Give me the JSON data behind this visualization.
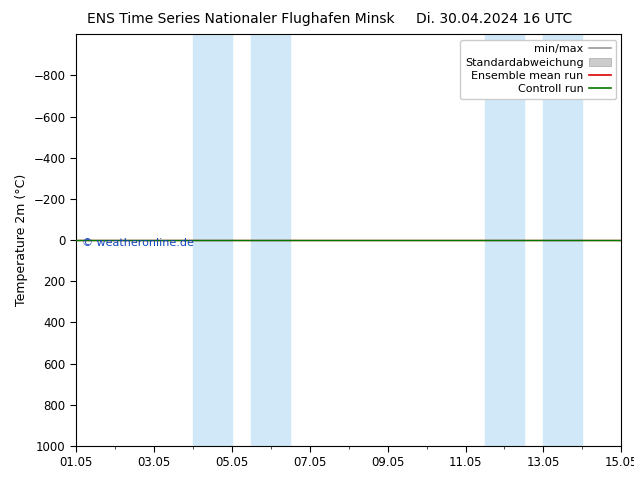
{
  "title": "ENS Time Series Nationaler Flughafen Minsk",
  "title2": "Di. 30.04.2024 16 UTC",
  "ylabel": "Temperature 2m (°C)",
  "ylim_top": -1000,
  "ylim_bottom": 1000,
  "yticks": [
    -800,
    -600,
    -400,
    -200,
    0,
    200,
    400,
    600,
    800,
    1000
  ],
  "background_color": "#ffffff",
  "plot_bg_color": "#ffffff",
  "control_run_color": "#007700",
  "ensemble_mean_color": "#dd0000",
  "minmax_color": "#999999",
  "std_color": "#cccccc",
  "legend_entries": [
    "min/max",
    "Standardabweichung",
    "Ensemble mean run",
    "Controll run"
  ],
  "watermark": "© weatheronline.de",
  "watermark_color": "#1144bb",
  "x_labels": [
    "01.05",
    "03.05",
    "05.05",
    "07.05",
    "09.05",
    "11.05",
    "13.05",
    "15.05"
  ],
  "x_values": [
    0,
    2,
    4,
    6,
    8,
    10,
    12,
    14
  ],
  "x_min": 0,
  "x_max": 14,
  "shaded_band_x": [
    [
      3.0,
      4.0
    ],
    [
      4.5,
      5.5
    ],
    [
      10.5,
      11.5
    ],
    [
      12.0,
      13.0
    ]
  ],
  "band_color": "#d0e8f8",
  "title_fontsize": 10,
  "label_fontsize": 9,
  "tick_fontsize": 8.5,
  "legend_fontsize": 8
}
